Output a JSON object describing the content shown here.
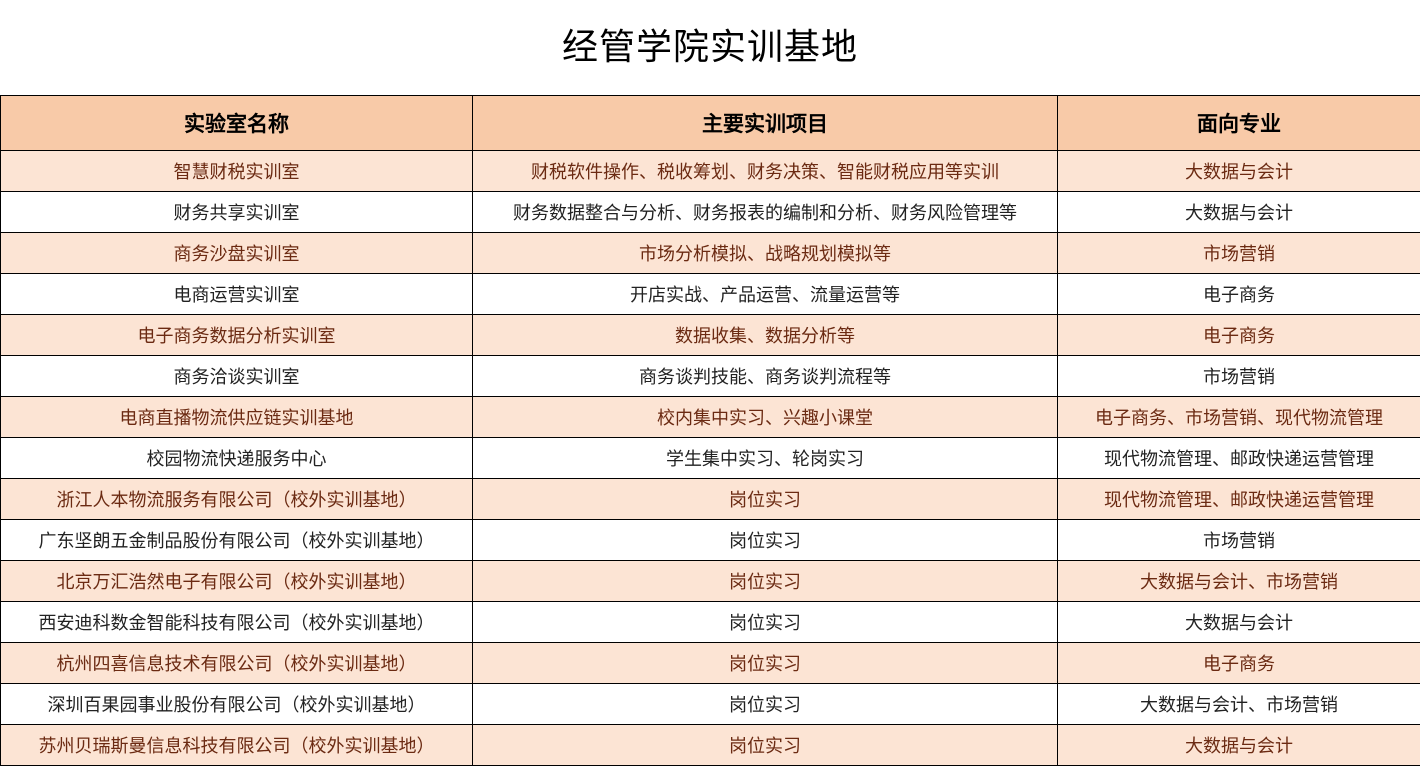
{
  "title": "经管学院实训基地",
  "colors": {
    "header_bg": "#f8caa8",
    "shaded_row_bg": "#fce4d4"
  },
  "table": {
    "headers": [
      "实验室名称",
      "主要实训项目",
      "面向专业"
    ],
    "rows": [
      [
        "智慧财税实训室",
        "财税软件操作、税收筹划、财务决策、智能财税应用等实训",
        "大数据与会计"
      ],
      [
        "财务共享实训室",
        "财务数据整合与分析、财务报表的编制和分析、财务风险管理等",
        "大数据与会计"
      ],
      [
        "商务沙盘实训室",
        "市场分析模拟、战略规划模拟等",
        "市场营销"
      ],
      [
        "电商运营实训室",
        "开店实战、产品运营、流量运营等",
        "电子商务"
      ],
      [
        "电子商务数据分析实训室",
        "数据收集、数据分析等",
        "电子商务"
      ],
      [
        "商务洽谈实训室",
        "商务谈判技能、商务谈判流程等",
        "市场营销"
      ],
      [
        "电商直播物流供应链实训基地",
        "校内集中实习、兴趣小课堂",
        "电子商务、市场营销、现代物流管理"
      ],
      [
        "校园物流快递服务中心",
        "学生集中实习、轮岗实习",
        "现代物流管理、邮政快递运营管理"
      ],
      [
        "浙江人本物流服务有限公司（校外实训基地）",
        "岗位实习",
        "现代物流管理、邮政快递运营管理"
      ],
      [
        "广东坚朗五金制品股份有限公司（校外实训基地）",
        "岗位实习",
        "市场营销"
      ],
      [
        "北京万汇浩然电子有限公司（校外实训基地）",
        "岗位实习",
        "大数据与会计、市场营销"
      ],
      [
        "西安迪科数金智能科技有限公司（校外实训基地）",
        "岗位实习",
        "大数据与会计"
      ],
      [
        "杭州四喜信息技术有限公司（校外实训基地）",
        "岗位实习",
        "电子商务"
      ],
      [
        "深圳百果园事业股份有限公司（校外实训基地）",
        "岗位实习",
        "大数据与会计、市场营销"
      ],
      [
        "苏州贝瑞斯曼信息科技有限公司（校外实训基地）",
        "岗位实习",
        "大数据与会计"
      ]
    ]
  }
}
